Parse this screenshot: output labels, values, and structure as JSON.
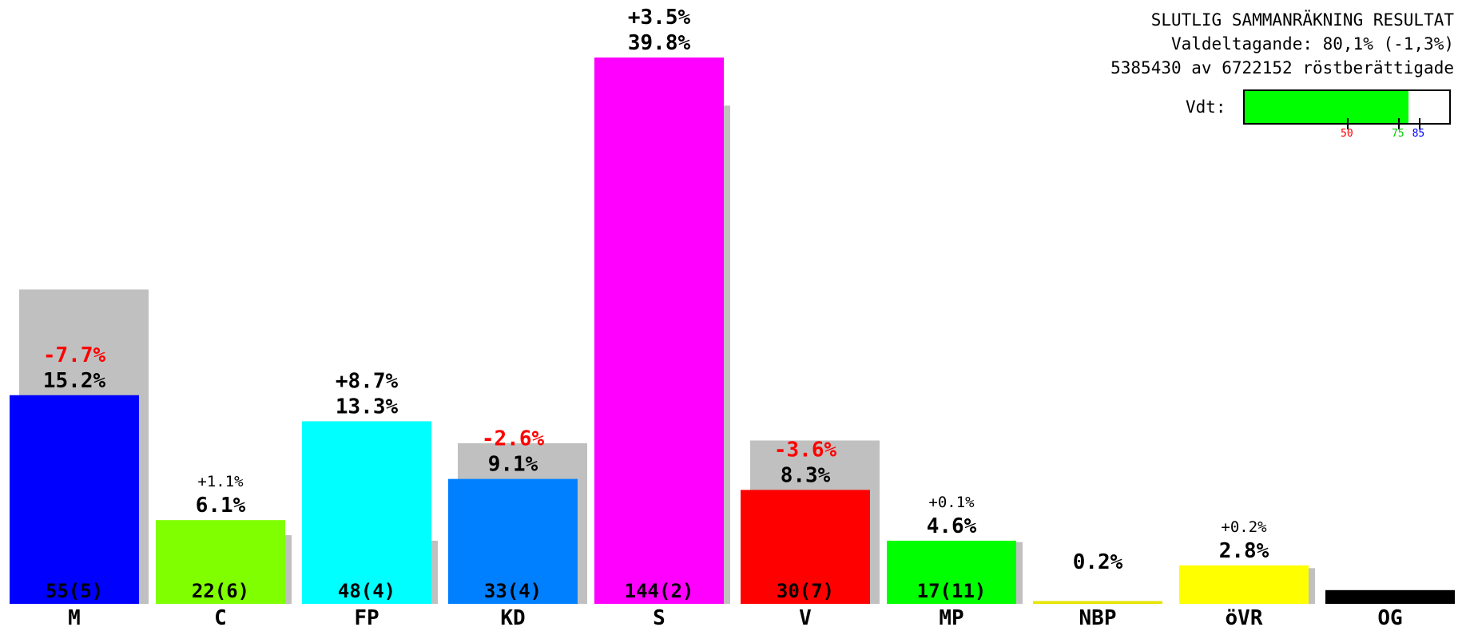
{
  "header": {
    "title": "SLUTLIG SAMMANRÄKNING RESULTAT",
    "turnout": "Valdeltagande: 80,1% (-1,3%)",
    "voters": "5385430 av 6722152 röstberättigade"
  },
  "turnout_gauge": {
    "label": "Vdt:",
    "value": 80.1,
    "range": [
      0,
      100
    ],
    "ticks": [
      {
        "value": 50,
        "label": "50",
        "color": "#ff0000"
      },
      {
        "value": 75,
        "label": "75",
        "color": "#00cc00"
      },
      {
        "value": 85,
        "label": "85",
        "color": "#0000ff"
      }
    ]
  },
  "chart_data": {
    "type": "bar",
    "categories": [
      "M",
      "C",
      "FP",
      "KD",
      "S",
      "V",
      "MP",
      "NBP",
      "öVR",
      "OG"
    ],
    "series": [
      {
        "values": [
          15.2,
          6.1,
          13.3,
          9.1,
          39.8,
          8.3,
          4.6,
          0.2,
          2.8,
          1.0
        ]
      },
      {
        "values": [
          22.9,
          5.0,
          4.6,
          11.7,
          36.3,
          11.9,
          4.5,
          null,
          2.6,
          null
        ]
      }
    ],
    "value_labels": [
      "15.2%",
      "6.1%",
      "13.3%",
      "9.1%",
      "39.8%",
      "8.3%",
      "4.6%",
      "0.2%",
      "2.8%",
      ""
    ],
    "change_labels": [
      "-7.7%",
      "+1.1%",
      "+8.7%",
      "-2.6%",
      "+3.5%",
      "-3.6%",
      "+0.1%",
      "",
      "+0.2%",
      ""
    ],
    "seat_labels": [
      "55(5)",
      "22(6)",
      "48(4)",
      "33(4)",
      "144(2)",
      "30(7)",
      "17(11)",
      "",
      "",
      ""
    ],
    "colors": [
      "#0000ff",
      "#7fff00",
      "#00ffff",
      "#0080ff",
      "#ff00ff",
      "#ff0000",
      "#00ff00",
      "#e5e500",
      "#ffff00",
      "#000000"
    ],
    "previous_color": "#c0c0c0",
    "ylim": [
      0,
      45
    ],
    "grid": false
  }
}
